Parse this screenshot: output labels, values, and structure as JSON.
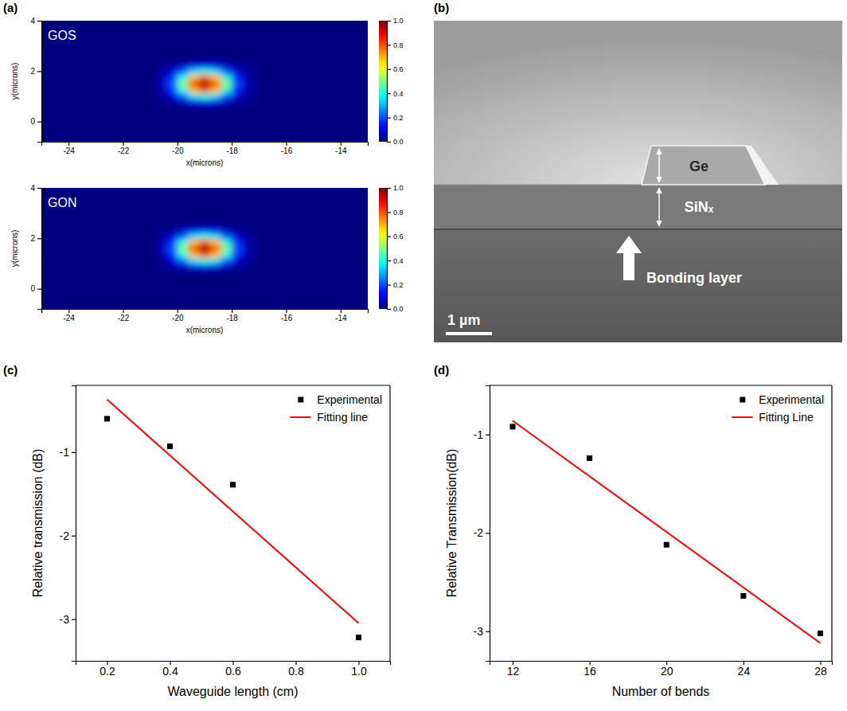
{
  "panel_labels": [
    "(a)",
    "(b)",
    "(c)",
    "(d)"
  ],
  "chart_data": [
    {
      "type": "heatmap",
      "title": "GOS",
      "x_label": "x(microns)",
      "y_label": "y(microns)",
      "xlim": [
        -25,
        -13
      ],
      "xticks": [
        -24,
        -22,
        -20,
        -18,
        -16,
        -14
      ],
      "ylim": [
        -0.8,
        4
      ],
      "yticks": [
        0,
        2,
        4
      ],
      "x": [
        -20.6,
        -20.2,
        -19.8,
        -19.4,
        -19.0,
        -18.6,
        -18.2,
        -17.8,
        -17.4
      ],
      "y": [
        0.75,
        1.0,
        1.25,
        1.5,
        1.75,
        2.0,
        2.25
      ],
      "z": [
        [
          0.01,
          0.02,
          0.05,
          0.09,
          0.1,
          0.09,
          0.05,
          0.02,
          0.01
        ],
        [
          0.02,
          0.08,
          0.2,
          0.34,
          0.4,
          0.34,
          0.2,
          0.08,
          0.02
        ],
        [
          0.04,
          0.16,
          0.4,
          0.68,
          0.8,
          0.68,
          0.4,
          0.16,
          0.04
        ],
        [
          0.05,
          0.2,
          0.5,
          0.85,
          1.0,
          0.85,
          0.5,
          0.2,
          0.05
        ],
        [
          0.04,
          0.16,
          0.4,
          0.68,
          0.8,
          0.68,
          0.4,
          0.16,
          0.04
        ],
        [
          0.02,
          0.08,
          0.2,
          0.34,
          0.4,
          0.34,
          0.2,
          0.08,
          0.02
        ],
        [
          0.01,
          0.02,
          0.05,
          0.09,
          0.1,
          0.09,
          0.05,
          0.02,
          0.01
        ]
      ],
      "colorbar": {
        "range": [
          0,
          1
        ],
        "ticks": [
          {
            "value": 0,
            "label": "0.0"
          },
          0.2,
          0.4,
          0.6,
          0.8,
          {
            "value": 1,
            "label": "1.0"
          }
        ]
      }
    },
    {
      "type": "heatmap",
      "title": "GON",
      "x_label": "x(microns)",
      "y_label": "y(microns)",
      "xlim": [
        -25,
        -13
      ],
      "xticks": [
        -24,
        -22,
        -20,
        -18,
        -16,
        -14
      ],
      "ylim": [
        -0.8,
        4
      ],
      "yticks": [
        0,
        2,
        4
      ],
      "x": [
        -20.6,
        -20.2,
        -19.8,
        -19.4,
        -19.0,
        -18.6,
        -18.2,
        -17.8,
        -17.4
      ],
      "y": [
        0.85,
        1.1,
        1.35,
        1.6,
        1.85,
        2.1,
        2.35
      ],
      "z": [
        [
          0.01,
          0.02,
          0.05,
          0.09,
          0.1,
          0.09,
          0.05,
          0.02,
          0.01
        ],
        [
          0.02,
          0.08,
          0.2,
          0.34,
          0.4,
          0.34,
          0.2,
          0.08,
          0.02
        ],
        [
          0.04,
          0.16,
          0.4,
          0.68,
          0.8,
          0.68,
          0.4,
          0.16,
          0.04
        ],
        [
          0.05,
          0.2,
          0.5,
          0.85,
          1.0,
          0.85,
          0.5,
          0.2,
          0.05
        ],
        [
          0.04,
          0.16,
          0.4,
          0.68,
          0.8,
          0.68,
          0.4,
          0.16,
          0.04
        ],
        [
          0.02,
          0.08,
          0.2,
          0.34,
          0.4,
          0.34,
          0.2,
          0.08,
          0.02
        ],
        [
          0.01,
          0.02,
          0.05,
          0.09,
          0.1,
          0.09,
          0.05,
          0.02,
          0.01
        ]
      ],
      "colorbar": {
        "range": [
          0,
          1
        ],
        "ticks": [
          {
            "value": 0,
            "label": "0.0"
          },
          0.2,
          0.4,
          0.6,
          0.8,
          {
            "value": 1,
            "label": "1.0"
          }
        ]
      }
    },
    {
      "type": "image",
      "annotations": [
        "Ge",
        "SiNₓ",
        "Bonding layer",
        "1 µm"
      ]
    },
    {
      "type": "line",
      "x_label": "Waveguide length (cm)",
      "y_label": "Relative transmission (dB)",
      "xlim": [
        0.1,
        1.1
      ],
      "xticks": [
        0.2,
        0.4,
        0.6,
        0.8,
        {
          "value": 1,
          "label": "1.0"
        }
      ],
      "ylim": [
        -3.5,
        -0.2
      ],
      "yticks": [
        -3,
        -2,
        -1
      ],
      "legend": "upper right",
      "series": [
        {
          "name": "Experimental",
          "type": "scatter",
          "marker": "square",
          "color": "#000000",
          "x": [
            0.2,
            0.4,
            0.6,
            1.0
          ],
          "values": [
            -0.6,
            -0.93,
            -1.39,
            -3.22
          ]
        },
        {
          "name": "Fitting line",
          "type": "line",
          "line_style": "solid",
          "color": "#ff0000",
          "x": [
            0.2,
            1.0
          ],
          "values": [
            -0.37,
            -3.05
          ]
        }
      ]
    },
    {
      "type": "line",
      "x_label": "Number of bends",
      "y_label": "Relative Transmission(dB)",
      "xlim": [
        10.8,
        28.6
      ],
      "xticks": [
        12,
        16,
        20,
        24,
        28
      ],
      "ylim": [
        -3.3,
        -0.5
      ],
      "yticks": [
        -3,
        -2,
        -1
      ],
      "legend": "upper right",
      "series": [
        {
          "name": "Experimental",
          "type": "scatter",
          "marker": "square",
          "color": "#000000",
          "x": [
            12,
            16,
            20,
            24,
            28
          ],
          "values": [
            -0.92,
            -1.24,
            -2.12,
            -2.64,
            -3.02
          ]
        },
        {
          "name": "Fitting Line",
          "type": "line",
          "line_style": "solid",
          "color": "#ff0000",
          "x": [
            12,
            28
          ],
          "values": [
            -0.86,
            -3.12
          ]
        }
      ]
    }
  ]
}
